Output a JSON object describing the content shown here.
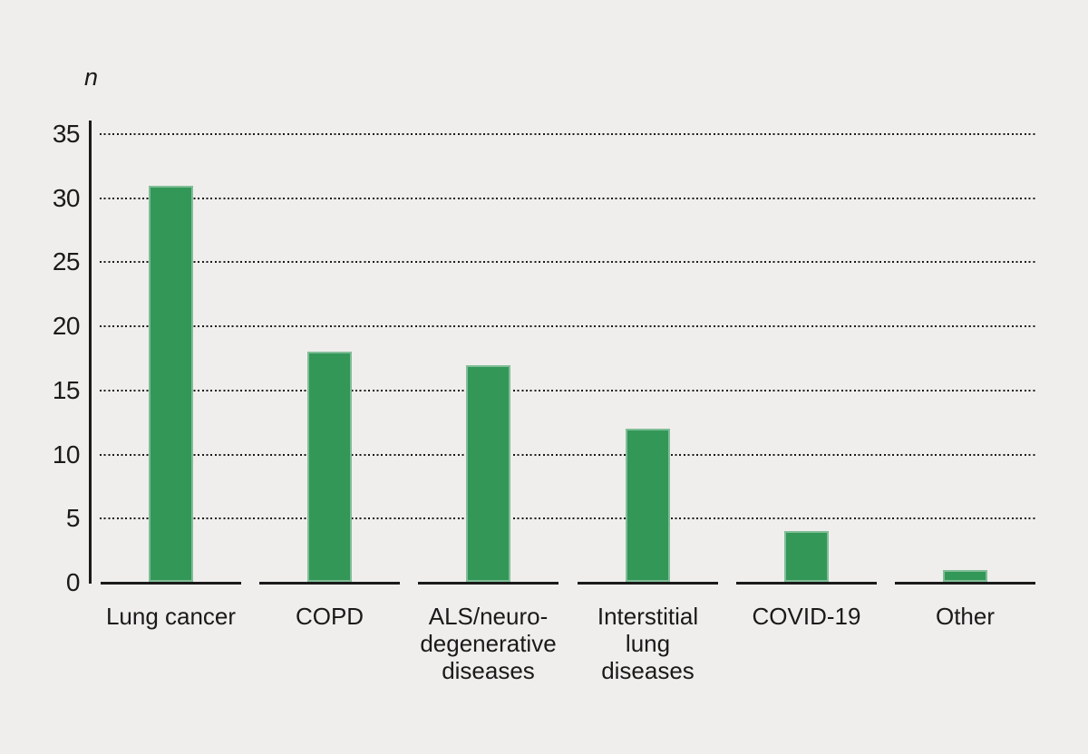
{
  "figure": {
    "background_color": "#f0eeec",
    "text_color": "#1a1a1a",
    "axis_color": "#1a1a1a"
  },
  "chart_data": {
    "type": "bar",
    "title": "",
    "xlabel": "",
    "ylabel": "n",
    "categories": [
      "Lung cancer",
      "COPD",
      "ALS/neuro-degenerative diseases",
      "Interstitial lung diseases",
      "COVID-19",
      "Other"
    ],
    "category_label_lines": [
      [
        "Lung cancer"
      ],
      [
        "COPD"
      ],
      [
        "ALS/neuro-",
        "degenerative",
        "diseases"
      ],
      [
        "Interstitial",
        "lung",
        "diseases"
      ],
      [
        "COVID-19"
      ],
      [
        "Other"
      ]
    ],
    "values": [
      31,
      18,
      17,
      12,
      4,
      1
    ],
    "ylim": [
      0,
      35
    ],
    "yticks": [
      0,
      5,
      10,
      15,
      20,
      25,
      30,
      35
    ],
    "grid": "horizontal-dotted",
    "legend_position": "none",
    "bar_color": "#339758",
    "bar_edge_color": "rgba(255,255,255,0.38)",
    "gridline_color": "#1b1b1b",
    "baseline_style": "solid segment per category"
  }
}
